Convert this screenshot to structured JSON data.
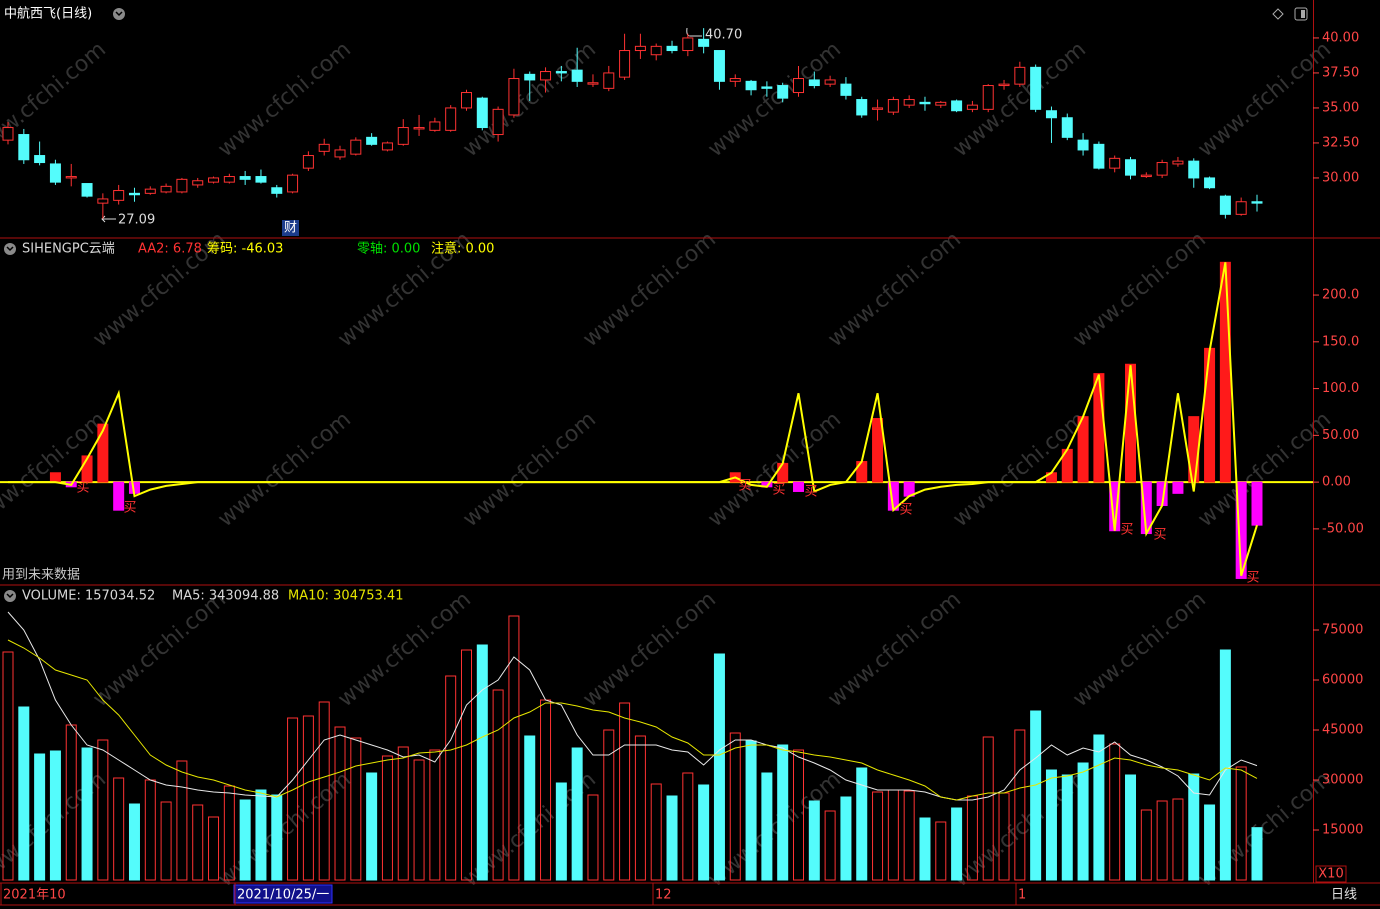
{
  "title": "中航西飞(日线)",
  "watermark": "www.cfchi.com",
  "future_note": "用到未来数据",
  "period": "日线",
  "x_labels": [
    "2021年10",
    "2021/10/25/一",
    "12",
    "1"
  ],
  "chart_data": [
    {
      "type": "candlestick",
      "up_color": "#ff3232",
      "down_color": "#54fcfc",
      "axis_color": "#ff4646",
      "ylim": [
        25.71,
        42.71
      ],
      "yticks": [
        {
          "value": 40,
          "label": "40.00"
        },
        {
          "value": 37.5,
          "label": "37.50"
        },
        {
          "value": 35,
          "label": "35.00"
        },
        {
          "value": 32.5,
          "label": "32.50"
        },
        {
          "value": 30,
          "label": "30.00"
        }
      ],
      "annotations": [
        "27.09",
        "40.70"
      ],
      "event_label": "财",
      "open": [
        32.7,
        33.1,
        31.6,
        31.0,
        30.0,
        29.6,
        28.2,
        28.4,
        28.9,
        28.9,
        29.0,
        29.0,
        29.5,
        29.7,
        29.7,
        30.1,
        30.1,
        29.3,
        29.0,
        30.7,
        31.9,
        31.5,
        31.7,
        32.9,
        32.0,
        32.4,
        33.5,
        33.4,
        33.4,
        35.0,
        35.7,
        33.1,
        34.5,
        37.4,
        37.0,
        37.6,
        37.7,
        36.7,
        36.4,
        37.2,
        39.1,
        38.8,
        39.4,
        39.1,
        39.9,
        39.1,
        36.9,
        36.9,
        36.5,
        36.6,
        36.1,
        37.0,
        36.7,
        36.7,
        35.6,
        34.9,
        34.7,
        35.2,
        35.4,
        35.2,
        35.5,
        34.9,
        34.9,
        36.6,
        36.7,
        37.9,
        34.8,
        34.3,
        32.7,
        32.4,
        30.7,
        31.3,
        30.1,
        30.2,
        31.0,
        31.2,
        30.0,
        28.7,
        27.4,
        28.3
      ],
      "high": [
        34.0,
        33.5,
        32.6,
        31.3,
        31.0,
        29.6,
        28.9,
        29.5,
        29.3,
        29.4,
        29.6,
        30.0,
        30.0,
        30.1,
        30.3,
        30.5,
        30.6,
        29.5,
        30.3,
        31.9,
        32.8,
        32.3,
        32.9,
        33.2,
        32.6,
        34.2,
        34.5,
        34.3,
        35.2,
        36.3,
        35.8,
        35.1,
        37.8,
        37.6,
        37.9,
        38.0,
        39.3,
        37.4,
        38.0,
        40.3,
        40.3,
        39.6,
        39.8,
        40.3,
        40.7,
        39.1,
        37.4,
        37.0,
        36.9,
        36.8,
        38.0,
        37.6,
        37.3,
        37.2,
        35.8,
        35.6,
        35.8,
        35.9,
        35.8,
        35.5,
        35.6,
        35.5,
        36.7,
        37.0,
        38.3,
        38.1,
        35.1,
        34.6,
        33.2,
        32.6,
        31.6,
        31.5,
        30.4,
        31.3,
        31.5,
        31.4,
        30.1,
        28.8,
        28.6,
        28.8
      ],
      "low": [
        32.4,
        31.0,
        30.9,
        29.5,
        29.4,
        28.6,
        27.09,
        28.1,
        28.3,
        28.8,
        28.9,
        28.9,
        29.3,
        29.6,
        29.6,
        29.5,
        29.6,
        28.6,
        28.9,
        30.5,
        31.6,
        31.3,
        31.6,
        32.3,
        31.9,
        32.3,
        33.0,
        33.3,
        33.3,
        34.8,
        33.4,
        32.6,
        34.3,
        35.5,
        36.1,
        36.9,
        36.5,
        36.5,
        36.2,
        37.0,
        38.5,
        38.4,
        38.9,
        38.7,
        38.9,
        36.3,
        36.5,
        35.9,
        35.8,
        35.4,
        35.8,
        36.4,
        36.5,
        35.6,
        34.3,
        34.1,
        34.5,
        35.0,
        34.8,
        35.0,
        34.7,
        34.7,
        34.7,
        36.3,
        36.5,
        34.7,
        32.5,
        32.7,
        31.6,
        30.6,
        30.4,
        29.9,
        30.0,
        30.0,
        30.8,
        29.3,
        29.2,
        27.1,
        27.3,
        27.6
      ],
      "close": [
        33.6,
        31.3,
        31.1,
        29.7,
        30.1,
        28.7,
        28.5,
        29.1,
        28.8,
        29.2,
        29.4,
        29.9,
        29.8,
        30.0,
        30.1,
        29.9,
        29.7,
        28.9,
        30.2,
        31.6,
        32.4,
        32.0,
        32.7,
        32.4,
        32.5,
        33.6,
        33.6,
        34.0,
        35.0,
        36.1,
        33.6,
        34.9,
        37.1,
        37.0,
        37.6,
        37.5,
        36.9,
        36.8,
        37.5,
        39.1,
        39.4,
        39.4,
        39.1,
        40.0,
        39.4,
        36.9,
        37.1,
        36.3,
        36.4,
        35.7,
        37.1,
        36.6,
        37.0,
        35.9,
        34.5,
        35.0,
        35.6,
        35.6,
        35.3,
        35.4,
        34.8,
        35.2,
        36.6,
        36.7,
        37.9,
        34.9,
        34.3,
        32.9,
        32.0,
        30.7,
        31.4,
        30.2,
        30.2,
        31.1,
        31.2,
        30.0,
        29.3,
        27.4,
        28.3,
        28.2
      ]
    },
    {
      "type": "bar",
      "label": "SIHENGPC云端",
      "axis_color": "#ff4646",
      "zero_color": "#ffff00",
      "legend": [
        {
          "label": "AA2: 6.78",
          "color": "#ff3232"
        },
        {
          "label": "筹码: -46.03",
          "color": "#ffff00"
        },
        {
          "label": "零轴: 0.00",
          "color": "#00e000"
        },
        {
          "label": "注意: 0.00",
          "color": "#ffff00"
        }
      ],
      "buy_labels": [
        "买",
        "买",
        "买",
        "买",
        "买",
        "买",
        "买",
        "买",
        "买"
      ],
      "ylim": [
        -110,
        261
      ],
      "yticks": [
        {
          "value": 200,
          "label": "200.0"
        },
        {
          "value": 150,
          "label": "150.0"
        },
        {
          "value": 100,
          "label": "100.0"
        },
        {
          "value": 50,
          "label": "50.00"
        },
        {
          "value": 0,
          "label": "0.00"
        },
        {
          "value": -50,
          "label": "-50.00"
        }
      ],
      "series": [
        {
          "type": "bar",
          "color": "#ff1a1a",
          "negative_color": "#ff00ff",
          "values": [
            0,
            0,
            0,
            10,
            -5,
            28,
            62,
            -30,
            -12,
            0,
            0,
            0,
            0,
            0,
            0,
            0,
            0,
            0,
            0,
            0,
            0,
            0,
            0,
            0,
            0,
            0,
            0,
            0,
            0,
            0,
            0,
            0,
            0,
            0,
            0,
            0,
            0,
            0,
            0,
            0,
            0,
            0,
            0,
            0,
            0,
            0,
            10,
            0,
            -5,
            20,
            -10,
            0,
            0,
            0,
            22,
            68,
            -30,
            -15,
            0,
            0,
            0,
            0,
            0,
            0,
            0,
            0,
            10,
            35,
            70,
            116,
            -52,
            126,
            -55,
            -25,
            -12,
            70,
            143,
            235,
            -103,
            -46
          ]
        },
        {
          "type": "line",
          "color": "#ffff00",
          "values": [
            0,
            0,
            0,
            0,
            -3,
            25,
            55,
            95,
            -15,
            -8,
            -4,
            -2,
            0,
            0,
            0,
            0,
            0,
            0,
            0,
            0,
            0,
            0,
            0,
            0,
            0,
            0,
            0,
            0,
            0,
            0,
            0,
            0,
            0,
            0,
            0,
            0,
            0,
            0,
            0,
            0,
            0,
            0,
            0,
            0,
            0,
            0,
            5,
            -3,
            -5,
            20,
            95,
            -10,
            -3,
            0,
            22,
            95,
            -30,
            -15,
            -8,
            -5,
            -3,
            -2,
            0,
            0,
            0,
            0,
            10,
            35,
            70,
            115,
            -52,
            125,
            -55,
            -25,
            95,
            -10,
            140,
            235,
            -100,
            -46.03
          ]
        }
      ]
    },
    {
      "type": "bar",
      "axis_color": "#ff4646",
      "unit_label": "X10",
      "ylim": [
        -600,
        88500
      ],
      "yticks": [
        75000,
        60000,
        45000,
        30000,
        15000
      ],
      "series": [
        {
          "type": "bar",
          "name": "VOLUME: 157034.52",
          "color": "#d0d0d0",
          "values": [
            68400,
            51900,
            37800,
            38700,
            46500,
            39600,
            42000,
            30600,
            22800,
            30000,
            23400,
            35700,
            22500,
            18900,
            28200,
            24000,
            27000,
            25500,
            48600,
            49200,
            53400,
            45900,
            42600,
            32100,
            37200,
            39900,
            36000,
            39000,
            61200,
            69000,
            70500,
            57000,
            79200,
            43200,
            54000,
            29100,
            39600,
            25500,
            45000,
            53100,
            43200,
            28800,
            25200,
            32100,
            28500,
            67800,
            44100,
            41700,
            32100,
            40500,
            39000,
            23700,
            20700,
            24900,
            33600,
            26400,
            27000,
            26700,
            18600,
            17400,
            21600,
            25200,
            42900,
            26100,
            45000,
            50700,
            33000,
            31500,
            35100,
            43500,
            40800,
            31500,
            21000,
            23700,
            24300,
            31800,
            22500,
            69000,
            33900,
            15703
          ]
        },
        {
          "type": "line",
          "name": "MA5: 343094.88",
          "color": "#e8e8e8",
          "values": [
            80400,
            75000,
            66000,
            54000,
            46500,
            40500,
            39000,
            36000,
            33000,
            30000,
            28500,
            27900,
            27000,
            26400,
            26100,
            25500,
            25200,
            24900,
            30000,
            36000,
            42000,
            43500,
            42000,
            40500,
            39000,
            36900,
            37500,
            35400,
            42000,
            52500,
            57000,
            60000,
            66900,
            63000,
            54000,
            52500,
            43500,
            37500,
            37500,
            40500,
            40500,
            40500,
            39000,
            38400,
            34500,
            39000,
            42000,
            42000,
            40500,
            39600,
            36900,
            35100,
            33000,
            30000,
            28500,
            27000,
            27000,
            27000,
            26400,
            24900,
            24000,
            24000,
            24900,
            27000,
            33000,
            36600,
            40500,
            37500,
            39600,
            38400,
            41400,
            37500,
            36000,
            33900,
            31200,
            26100,
            25500,
            33000,
            36000,
            34309
          ]
        },
        {
          "type": "line",
          "name": "MA10: 304753.41",
          "color": "#e6e600",
          "values": [
            72000,
            69600,
            66600,
            63000,
            61500,
            60000,
            54000,
            49500,
            43500,
            37500,
            34500,
            32400,
            30900,
            30000,
            28500,
            27000,
            26100,
            24900,
            27000,
            29400,
            30900,
            32400,
            34200,
            35100,
            36000,
            36600,
            38100,
            38400,
            39000,
            40500,
            42900,
            45000,
            48600,
            50400,
            53100,
            53100,
            52200,
            51000,
            50400,
            48600,
            47400,
            45900,
            42900,
            41100,
            37500,
            37500,
            39600,
            40500,
            40500,
            39000,
            38400,
            37500,
            36900,
            36000,
            35100,
            33000,
            31500,
            30000,
            28200,
            24900,
            24000,
            25200,
            26100,
            26100,
            27600,
            28500,
            30600,
            31200,
            32400,
            34500,
            36600,
            36000,
            34500,
            33600,
            33000,
            31500,
            30000,
            33600,
            33000,
            30475
          ]
        }
      ]
    }
  ]
}
